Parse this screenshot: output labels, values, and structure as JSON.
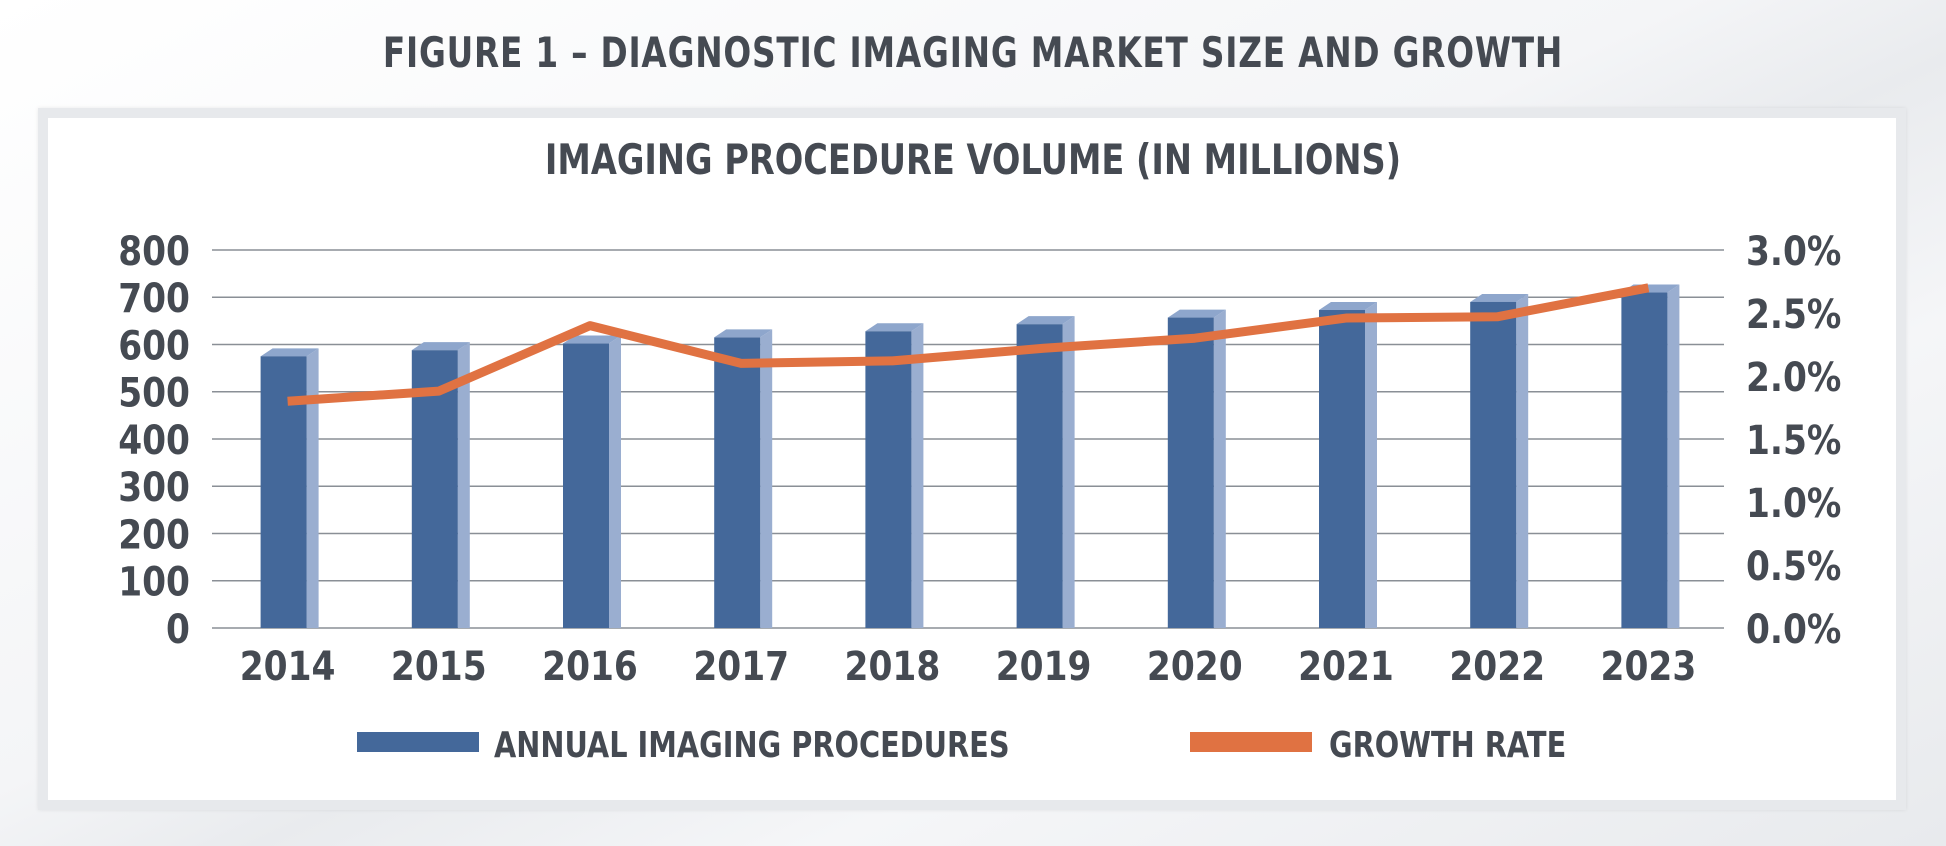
{
  "figure_title": "FIGURE 1 – DIAGNOSTIC IMAGING MARKET SIZE AND GROWTH",
  "colors": {
    "bar_front": "#44689a",
    "bar_side": "#9aaed0",
    "bar_top": "#8ea6cc",
    "line": "#e07242",
    "grid": "#8a8f96",
    "text": "#454a52"
  },
  "chart_data": {
    "type": "bar",
    "title": "IMAGING PROCEDURE VOLUME (IN MILLIONS)",
    "categories": [
      "2014",
      "2015",
      "2016",
      "2017",
      "2018",
      "2019",
      "2020",
      "2021",
      "2022",
      "2023"
    ],
    "series": [
      {
        "name": "ANNUAL IMAGING PROCEDURES",
        "type": "bar",
        "axis": "left",
        "values": [
          575,
          588,
          602,
          615,
          628,
          643,
          657,
          673,
          690,
          710
        ]
      },
      {
        "name": "GROWTH RATE",
        "type": "line",
        "axis": "right",
        "values": [
          1.8,
          1.88,
          2.4,
          2.1,
          2.12,
          2.22,
          2.3,
          2.46,
          2.47,
          2.7
        ]
      }
    ],
    "ylim": [
      0,
      800
    ],
    "yticks": [
      "0",
      "100",
      "200",
      "300",
      "400",
      "500",
      "600",
      "700",
      "800"
    ],
    "y2lim": [
      0,
      3.0
    ],
    "y2ticks": [
      "0.0%",
      "0.5%",
      "1.0%",
      "1.5%",
      "2.0%",
      "2.5%",
      "3.0%"
    ],
    "grid": true,
    "legend": "bottom"
  }
}
